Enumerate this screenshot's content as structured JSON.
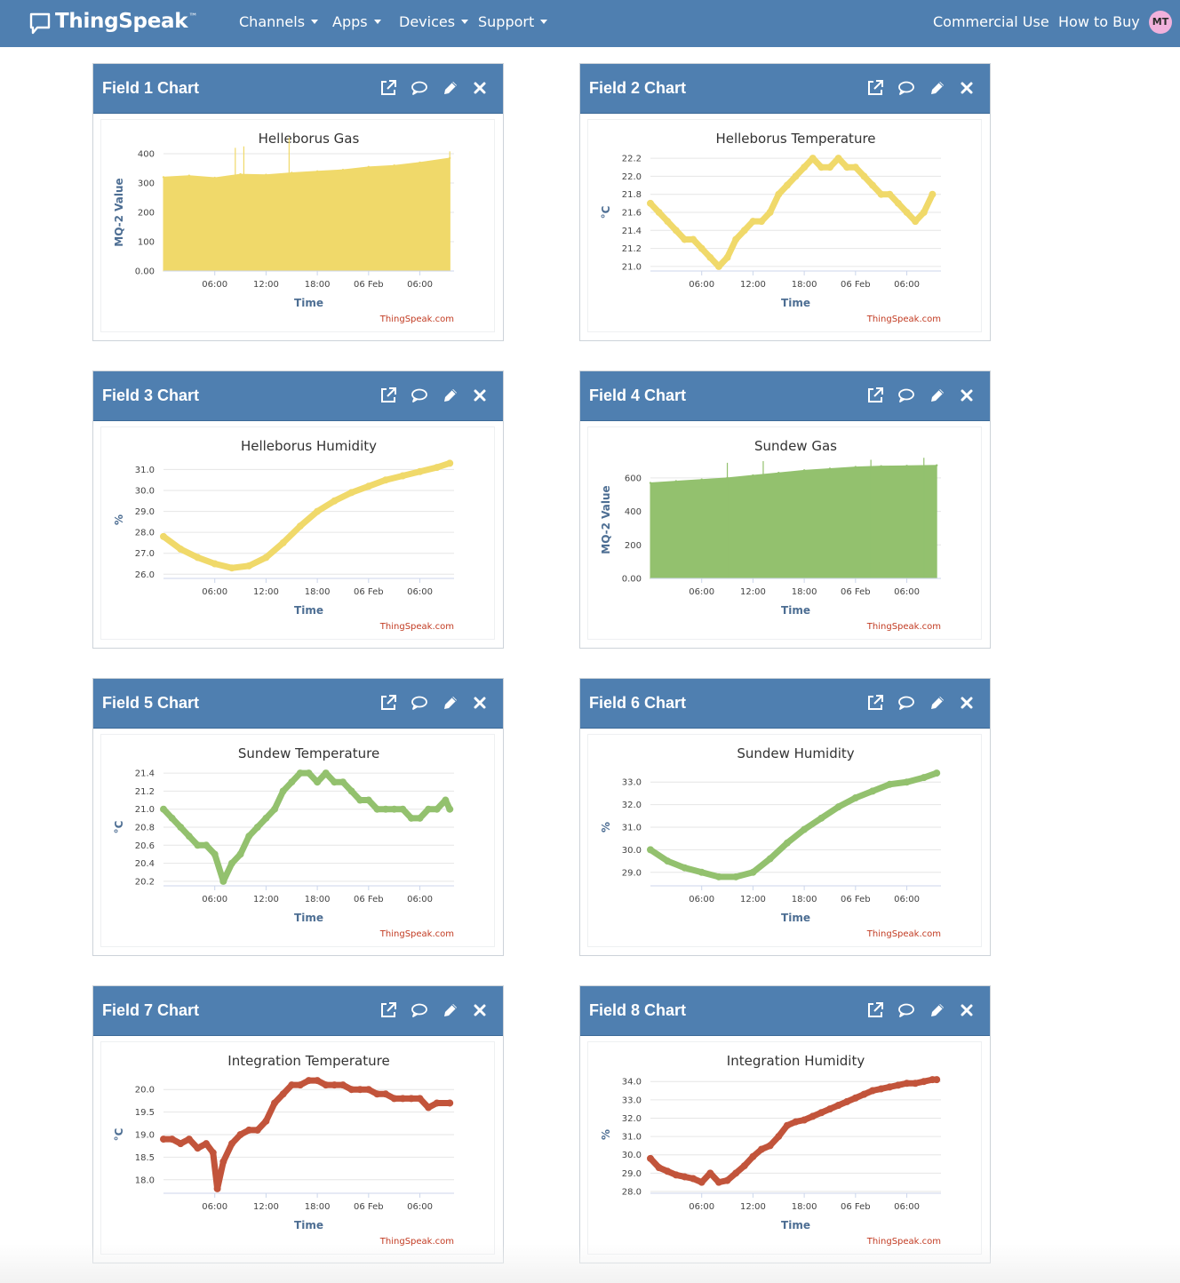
{
  "nav": {
    "brand": "ThingSpeak",
    "brand_mark": "™",
    "menus": [
      {
        "label": "Channels"
      },
      {
        "label": "Apps"
      },
      {
        "label": "Devices"
      },
      {
        "label": "Support"
      }
    ],
    "right_links": [
      "Commercial Use",
      "How to Buy"
    ],
    "avatar_initials": "MT"
  },
  "colors": {
    "navbar": "#4f7fb0",
    "yellow_series": "#f0d96a",
    "green_series": "#93c16e",
    "red_series": "#c2543b",
    "credits": "#c23b22"
  },
  "widget_icons": [
    "external-link-icon",
    "comment-icon",
    "pencil-icon",
    "close-icon"
  ],
  "chart_data": [
    {
      "widget_title": "Field 1 Chart",
      "type": "area",
      "color": "#f0d96a",
      "title": "Helleborus Gas",
      "xlabel": "Time",
      "ylabel": "MQ-2 Value",
      "x_ticks": [
        "06:00",
        "12:00",
        "18:00",
        "06 Feb",
        "06:00"
      ],
      "y_ticks": [
        "0.00",
        "100",
        "200",
        "300",
        "400"
      ],
      "ylim": [
        0,
        400
      ],
      "x": [
        0,
        3,
        6,
        9,
        12,
        15,
        18,
        21,
        24,
        27,
        30,
        33.5
      ],
      "values": [
        320,
        325,
        318,
        330,
        328,
        335,
        340,
        345,
        355,
        360,
        370,
        385
      ],
      "spikes": [
        {
          "x": 8.4,
          "y": 420
        },
        {
          "x": 9.4,
          "y": 425
        },
        {
          "x": 14.7,
          "y": 455
        },
        {
          "x": 33.5,
          "y": 408
        }
      ],
      "credits": "ThingSpeak.com"
    },
    {
      "widget_title": "Field 2 Chart",
      "type": "line",
      "color": "#f0d96a",
      "title": "Helleborus Temperature",
      "xlabel": "Time",
      "ylabel": "°C",
      "x_ticks": [
        "06:00",
        "12:00",
        "18:00",
        "06 Feb",
        "06:00"
      ],
      "y_ticks": [
        "21.0",
        "21.2",
        "21.4",
        "21.6",
        "21.8",
        "22.0",
        "22.2"
      ],
      "ylim": [
        20.95,
        22.25
      ],
      "x": [
        0,
        1,
        2,
        3,
        4,
        5,
        6,
        7,
        8,
        9,
        10,
        11,
        12,
        13,
        14,
        15,
        16,
        17,
        18,
        19,
        20,
        21,
        22,
        23,
        24,
        25,
        26,
        27,
        28,
        29,
        30,
        31,
        32,
        33
      ],
      "values": [
        21.7,
        21.6,
        21.5,
        21.4,
        21.3,
        21.3,
        21.2,
        21.1,
        21.0,
        21.1,
        21.3,
        21.4,
        21.5,
        21.5,
        21.6,
        21.8,
        21.9,
        22.0,
        22.1,
        22.2,
        22.1,
        22.1,
        22.2,
        22.1,
        22.1,
        22.0,
        21.9,
        21.8,
        21.8,
        21.7,
        21.6,
        21.5,
        21.6,
        21.8
      ],
      "credits": "ThingSpeak.com"
    },
    {
      "widget_title": "Field 3 Chart",
      "type": "line",
      "color": "#f0d96a",
      "title": "Helleborus Humidity",
      "xlabel": "Time",
      "ylabel": "%",
      "x_ticks": [
        "06:00",
        "12:00",
        "18:00",
        "06 Feb",
        "06:00"
      ],
      "y_ticks": [
        "26.0",
        "27.0",
        "28.0",
        "29.0",
        "30.0",
        "31.0"
      ],
      "ylim": [
        25.8,
        31.4
      ],
      "x": [
        0,
        2,
        4,
        6,
        8,
        10,
        12,
        14,
        16,
        18,
        20,
        22,
        24,
        26,
        28,
        30,
        32,
        33.5
      ],
      "values": [
        27.8,
        27.2,
        26.8,
        26.5,
        26.3,
        26.4,
        26.8,
        27.5,
        28.3,
        29.0,
        29.5,
        29.9,
        30.2,
        30.5,
        30.7,
        30.9,
        31.1,
        31.3
      ],
      "credits": "ThingSpeak.com"
    },
    {
      "widget_title": "Field 4 Chart",
      "type": "area",
      "color": "#93c16e",
      "title": "Sundew Gas",
      "xlabel": "Time",
      "ylabel": "MQ-2 Value",
      "x_ticks": [
        "06:00",
        "12:00",
        "18:00",
        "06 Feb",
        "06:00"
      ],
      "y_ticks": [
        "0.00",
        "200",
        "400",
        "600"
      ],
      "ylim": [
        0,
        700
      ],
      "x": [
        0,
        3,
        6,
        9,
        12,
        15,
        18,
        21,
        24,
        27,
        30,
        33.5
      ],
      "values": [
        570,
        580,
        590,
        600,
        615,
        630,
        645,
        655,
        665,
        670,
        672,
        675
      ],
      "spikes": [
        {
          "x": 9,
          "y": 690
        },
        {
          "x": 13.2,
          "y": 700
        },
        {
          "x": 25.8,
          "y": 708
        },
        {
          "x": 32,
          "y": 720
        }
      ],
      "credits": "ThingSpeak.com"
    },
    {
      "widget_title": "Field 5 Chart",
      "type": "line",
      "color": "#93c16e",
      "title": "Sundew Temperature",
      "xlabel": "Time",
      "ylabel": "°C",
      "x_ticks": [
        "06:00",
        "12:00",
        "18:00",
        "06 Feb",
        "06:00"
      ],
      "y_ticks": [
        "20.2",
        "20.4",
        "20.6",
        "20.8",
        "21.0",
        "21.2",
        "21.4"
      ],
      "ylim": [
        20.15,
        21.45
      ],
      "x": [
        0,
        1,
        2,
        3,
        4,
        5,
        6,
        7,
        8,
        9,
        10,
        11,
        12,
        13,
        14,
        15,
        16,
        17,
        18,
        19,
        20,
        21,
        22,
        23,
        24,
        25,
        26,
        27,
        28,
        29,
        30,
        31,
        32,
        33,
        33.5
      ],
      "values": [
        21.0,
        20.9,
        20.8,
        20.7,
        20.6,
        20.6,
        20.5,
        20.2,
        20.4,
        20.5,
        20.7,
        20.8,
        20.9,
        21.0,
        21.2,
        21.3,
        21.4,
        21.4,
        21.3,
        21.4,
        21.3,
        21.3,
        21.2,
        21.1,
        21.1,
        21.0,
        21.0,
        21.0,
        21.0,
        20.9,
        20.9,
        21.0,
        21.0,
        21.1,
        21.0
      ],
      "credits": "ThingSpeak.com"
    },
    {
      "widget_title": "Field 6 Chart",
      "type": "line",
      "color": "#93c16e",
      "title": "Sundew Humidity",
      "xlabel": "Time",
      "ylabel": "%",
      "x_ticks": [
        "06:00",
        "12:00",
        "18:00",
        "06 Feb",
        "06:00"
      ],
      "y_ticks": [
        "29.0",
        "30.0",
        "31.0",
        "32.0",
        "33.0"
      ],
      "ylim": [
        28.4,
        33.6
      ],
      "x": [
        0,
        2,
        4,
        6,
        8,
        10,
        12,
        14,
        16,
        18,
        20,
        22,
        24,
        26,
        28,
        30,
        32,
        33.5
      ],
      "values": [
        30.0,
        29.5,
        29.2,
        29.0,
        28.8,
        28.8,
        29.0,
        29.6,
        30.3,
        30.9,
        31.4,
        31.9,
        32.3,
        32.6,
        32.9,
        33.0,
        33.2,
        33.4
      ],
      "credits": "ThingSpeak.com"
    },
    {
      "widget_title": "Field 7 Chart",
      "type": "line",
      "color": "#c2543b",
      "title": "Integration Temperature",
      "xlabel": "Time",
      "ylabel": "°C",
      "x_ticks": [
        "06:00",
        "12:00",
        "18:00",
        "06 Feb",
        "06:00"
      ],
      "y_ticks": [
        "18.0",
        "18.5",
        "19.0",
        "19.5",
        "20.0"
      ],
      "ylim": [
        17.7,
        20.3
      ],
      "x": [
        0,
        1,
        2,
        3,
        4,
        5,
        5.8,
        6.3,
        7,
        8,
        9,
        10,
        11,
        12,
        13,
        14,
        15,
        16,
        17,
        18,
        19,
        20,
        21,
        22,
        23,
        24,
        25,
        26,
        27,
        28,
        29,
        30,
        31,
        32,
        33.5
      ],
      "values": [
        18.9,
        18.9,
        18.8,
        18.9,
        18.7,
        18.8,
        18.6,
        17.8,
        18.4,
        18.8,
        19.0,
        19.1,
        19.1,
        19.3,
        19.7,
        19.9,
        20.1,
        20.1,
        20.2,
        20.2,
        20.1,
        20.1,
        20.1,
        20.0,
        20.0,
        20.0,
        19.9,
        19.9,
        19.8,
        19.8,
        19.8,
        19.8,
        19.6,
        19.7,
        19.7
      ],
      "credits": "ThingSpeak.com"
    },
    {
      "widget_title": "Field 8 Chart",
      "type": "line",
      "color": "#c2543b",
      "title": "Integration Humidity",
      "xlabel": "Time",
      "ylabel": "%",
      "x_ticks": [
        "06:00",
        "12:00",
        "18:00",
        "06 Feb",
        "06:00"
      ],
      "y_ticks": [
        "28.0",
        "29.0",
        "30.0",
        "31.0",
        "32.0",
        "33.0",
        "34.0"
      ],
      "ylim": [
        27.9,
        34.3
      ],
      "x": [
        0,
        1,
        2,
        3,
        4,
        5,
        6,
        7,
        8,
        9,
        10,
        11,
        12,
        13,
        14,
        15,
        16,
        17,
        18,
        19,
        20,
        21,
        22,
        23,
        24,
        25,
        26,
        27,
        28,
        29,
        30,
        31,
        32,
        33,
        33.5
      ],
      "values": [
        29.8,
        29.3,
        29.1,
        28.9,
        28.8,
        28.7,
        28.5,
        29.0,
        28.5,
        28.6,
        29.0,
        29.4,
        29.9,
        30.3,
        30.5,
        31.0,
        31.6,
        31.8,
        31.9,
        32.1,
        32.3,
        32.5,
        32.7,
        32.9,
        33.1,
        33.3,
        33.5,
        33.6,
        33.7,
        33.8,
        33.9,
        33.9,
        34.0,
        34.1,
        34.1
      ],
      "credits": "ThingSpeak.com"
    }
  ]
}
